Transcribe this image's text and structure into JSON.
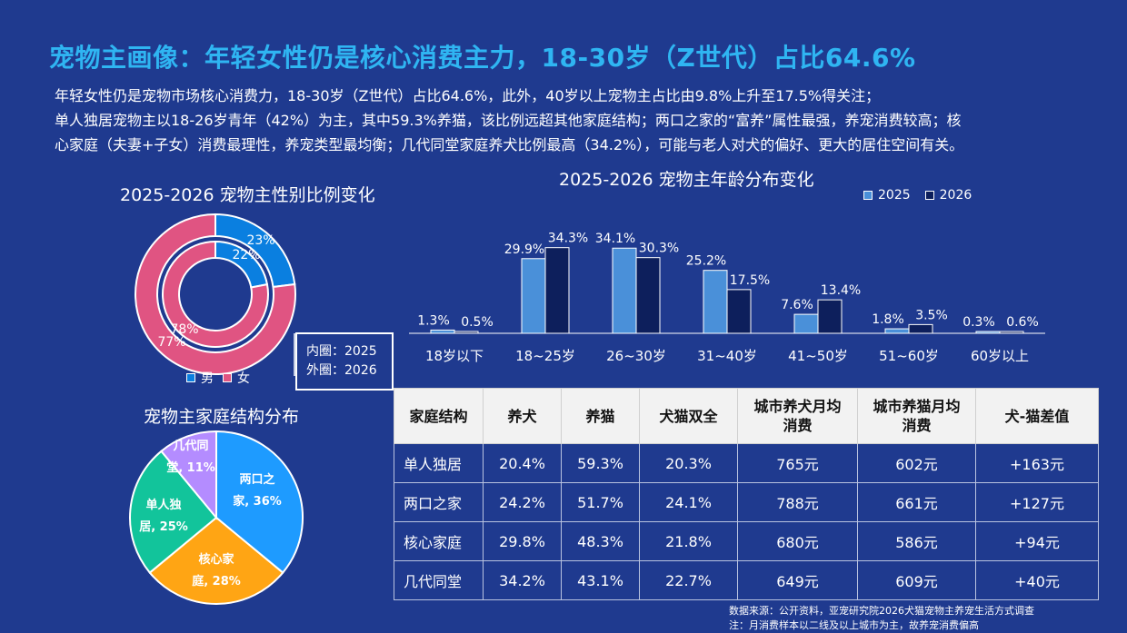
{
  "title": "宠物主画像：年轻女性仍是核心消费主力，18-30岁（Z世代）占比64.6%",
  "intro": [
    "年轻女性仍是宠物市场核心消费力，18-30岁（Z世代）占比64.6%，此外，40岁以上宠物主占比由9.8%上升至17.5%得关注；",
    "单人独居宠物主以18-26岁青年（42%）为主，其中59.3%养猫，该比例远超其他家庭结构；两口之家的“富养”属性最强，养宠消费较高；核",
    "心家庭（夫妻+子女）消费最理性，养宠类型最均衡；几代同堂家庭养犬比例最高（34.2%），可能与老人对犬的偏好、更大的居住空间有关。"
  ],
  "colors": {
    "background": "#1f3a8f",
    "title": "#2fb5f2",
    "male": "#0a7fe0",
    "female": "#e05482",
    "bar2025": "#4a90d9",
    "bar2026": "#0d1f5c",
    "pie_two": "#1e9bff",
    "pie_nuclear": "#ffa514",
    "pie_single": "#12c49b",
    "pie_multi": "#b48cff"
  },
  "chart_data": [
    {
      "type": "donut",
      "title": "2025-2026 宠物主性别比例变化",
      "legend": [
        "男",
        "女"
      ],
      "rings": [
        {
          "ring": "inner",
          "year": "2025",
          "values": {
            "男": 22,
            "女": 78
          },
          "labels": [
            "22%",
            "78%"
          ]
        },
        {
          "ring": "outer",
          "year": "2026",
          "values": {
            "男": 23,
            "女": 77
          },
          "labels": [
            "23%",
            "77%"
          ]
        }
      ],
      "note": [
        "内圈：2025",
        "外圈：2026"
      ]
    },
    {
      "type": "bar",
      "title": "2025-2026 宠物主年龄分布变化",
      "categories": [
        "18岁以下",
        "18~25岁",
        "26~30岁",
        "31~40岁",
        "41~50岁",
        "51~60岁",
        "60岁以上"
      ],
      "series": [
        {
          "name": "2025",
          "values": [
            1.3,
            29.9,
            34.1,
            25.2,
            7.6,
            1.8,
            0.3
          ],
          "labels": [
            "1.3%",
            "29.9%",
            "34.1%",
            "25.2%",
            "7.6%",
            "1.8%",
            "0.3%"
          ]
        },
        {
          "name": "2026",
          "values": [
            0.5,
            34.3,
            30.3,
            17.5,
            13.4,
            3.5,
            0.6
          ],
          "labels": [
            "0.5%",
            "34.3%",
            "30.3%",
            "17.5%",
            "13.4%",
            "3.5%",
            "0.6%"
          ]
        }
      ],
      "ylim": [
        0,
        40
      ]
    },
    {
      "type": "pie",
      "title": "宠物主家庭结构分布",
      "slices": [
        {
          "name": "两口之家",
          "value": 36,
          "label_lines": [
            "两口之",
            "家, 36%"
          ]
        },
        {
          "name": "核心家庭",
          "value": 28,
          "label_lines": [
            "核心家",
            "庭, 28%"
          ]
        },
        {
          "name": "单人独居",
          "value": 25,
          "label_lines": [
            "单人独",
            "居, 25%"
          ]
        },
        {
          "name": "几代同堂",
          "value": 11,
          "label_lines": [
            "几代同",
            "堂, 11%"
          ]
        }
      ]
    },
    {
      "type": "table",
      "headers": [
        [
          "家庭结构"
        ],
        [
          "养犬"
        ],
        [
          "养猫"
        ],
        [
          "犬猫双全"
        ],
        [
          "城市养犬月均",
          "消费"
        ],
        [
          "城市养猫月均",
          "消费"
        ],
        [
          "犬-猫差值"
        ]
      ],
      "rows": [
        [
          "单人独居",
          "20.4%",
          "59.3%",
          "20.3%",
          "765元",
          "602元",
          "+163元"
        ],
        [
          "两口之家",
          "24.2%",
          "51.7%",
          "24.1%",
          "788元",
          "661元",
          "+127元"
        ],
        [
          "核心家庭",
          "29.8%",
          "48.3%",
          "21.8%",
          "680元",
          "586元",
          "+94元"
        ],
        [
          "几代同堂",
          "34.2%",
          "43.1%",
          "22.7%",
          "649元",
          "609元",
          "+40元"
        ]
      ]
    }
  ],
  "footnote": [
    "数据来源：公开资料，亚宠研究院2026犬猫宠物主养宠生活方式调查",
    "注：月消费样本以二线及以上城市为主，故养宠消费偏高"
  ]
}
